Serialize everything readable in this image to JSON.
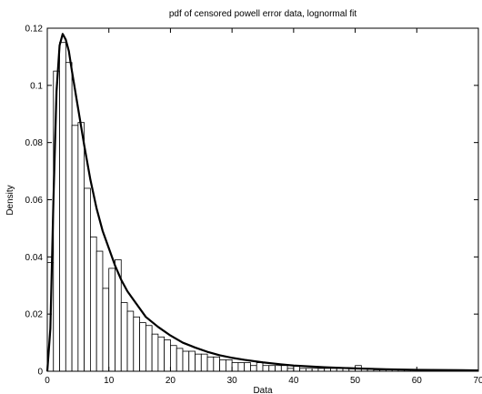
{
  "chart_data": {
    "type": "bar",
    "title": "pdf of censored powell error data, lognormal fit",
    "xlabel": "Data",
    "ylabel": "Density",
    "xlim": [
      0,
      70
    ],
    "ylim": [
      0,
      0.12
    ],
    "xticks": [
      "0",
      "10",
      "20",
      "30",
      "40",
      "50",
      "60",
      "70"
    ],
    "yticks": [
      "0",
      "0.02",
      "0.04",
      "0.06",
      "0.08",
      "0.1",
      "0.12"
    ],
    "grid": false,
    "legend": "none",
    "histogram": {
      "bin_width": 1,
      "bin_starts": [
        0,
        1,
        2,
        3,
        4,
        5,
        6,
        7,
        8,
        9,
        10,
        11,
        12,
        13,
        14,
        15,
        16,
        17,
        18,
        19,
        20,
        21,
        22,
        23,
        24,
        25,
        26,
        27,
        28,
        29,
        30,
        31,
        32,
        33,
        34,
        35,
        36,
        37,
        38,
        39,
        40,
        41,
        42,
        43,
        44,
        45,
        46,
        47,
        48,
        49,
        50,
        51,
        52,
        53,
        54,
        55,
        56,
        57,
        58,
        59,
        60,
        61,
        62,
        63,
        64,
        65,
        66,
        67,
        68,
        69
      ],
      "values": [
        0.038,
        0.105,
        0.115,
        0.108,
        0.086,
        0.087,
        0.064,
        0.047,
        0.042,
        0.029,
        0.036,
        0.039,
        0.024,
        0.021,
        0.019,
        0.017,
        0.016,
        0.013,
        0.012,
        0.011,
        0.009,
        0.008,
        0.007,
        0.007,
        0.006,
        0.006,
        0.005,
        0.005,
        0.004,
        0.004,
        0.003,
        0.003,
        0.003,
        0.002,
        0.003,
        0.002,
        0.002,
        0.002,
        0.002,
        0.001,
        0.002,
        0.001,
        0.001,
        0.001,
        0.001,
        0.001,
        0.001,
        0.001,
        0.001,
        0.001,
        0.002,
        0.001,
        0.001,
        0.0005,
        0.0005,
        0.0005,
        0.0005,
        0.0005,
        0.0005,
        0.0005,
        0.0005,
        0.0005,
        0.0003,
        0.0003,
        0.0003,
        0.0003,
        0.0003,
        0.0002,
        0.0002,
        0.0002
      ]
    },
    "fit_curve": {
      "x": [
        0,
        0.5,
        1,
        1.5,
        2,
        2.5,
        3,
        3.5,
        4,
        5,
        6,
        7,
        8,
        9,
        10,
        11,
        12,
        13,
        14,
        15,
        16,
        18,
        20,
        22,
        24,
        26,
        28,
        30,
        32,
        35,
        38,
        40,
        45,
        50,
        55,
        60,
        65,
        70
      ],
      "y": [
        0,
        0.015,
        0.06,
        0.098,
        0.114,
        0.118,
        0.116,
        0.112,
        0.105,
        0.092,
        0.079,
        0.067,
        0.057,
        0.049,
        0.043,
        0.037,
        0.032,
        0.028,
        0.025,
        0.022,
        0.019,
        0.0155,
        0.0125,
        0.01,
        0.0083,
        0.0068,
        0.0056,
        0.0047,
        0.004,
        0.0031,
        0.0024,
        0.002,
        0.0014,
        0.001,
        0.0007,
        0.0005,
        0.0004,
        0.0003
      ]
    }
  }
}
